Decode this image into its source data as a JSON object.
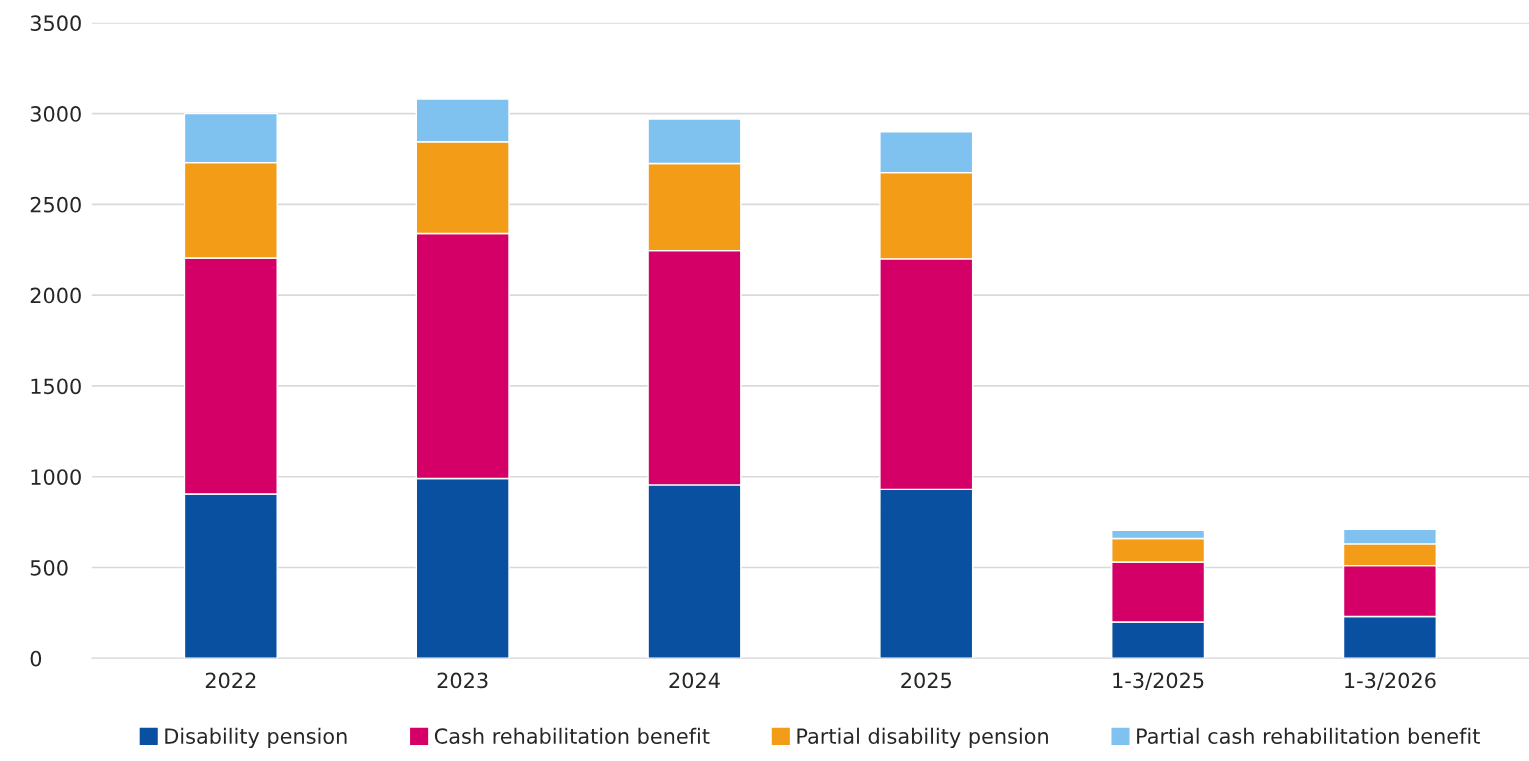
{
  "chart_data": {
    "type": "bar",
    "stacked": true,
    "categories": [
      "2022",
      "2023",
      "2024",
      "2025",
      "1-3/2025",
      "1-3/2026"
    ],
    "series": [
      {
        "name": "Disability pension",
        "color": "#0a50a1",
        "values": [
          905,
          990,
          955,
          930,
          200,
          230
        ]
      },
      {
        "name": "Cash rehabilitation benefit",
        "color": "#d40068",
        "values": [
          1300,
          1350,
          1290,
          1270,
          330,
          280
        ]
      },
      {
        "name": "Partial disability pension",
        "color": "#f39c17",
        "values": [
          525,
          505,
          480,
          475,
          130,
          120
        ]
      },
      {
        "name": "Partial cash rehabilitation benefit",
        "color": "#7fc2ef",
        "values": [
          270,
          235,
          245,
          225,
          45,
          80
        ]
      }
    ],
    "ylim": [
      0,
      3500
    ],
    "yticks": [
      0,
      500,
      1000,
      1500,
      2000,
      2500,
      3000,
      3500
    ],
    "grid": "y",
    "legend": "bottom"
  }
}
